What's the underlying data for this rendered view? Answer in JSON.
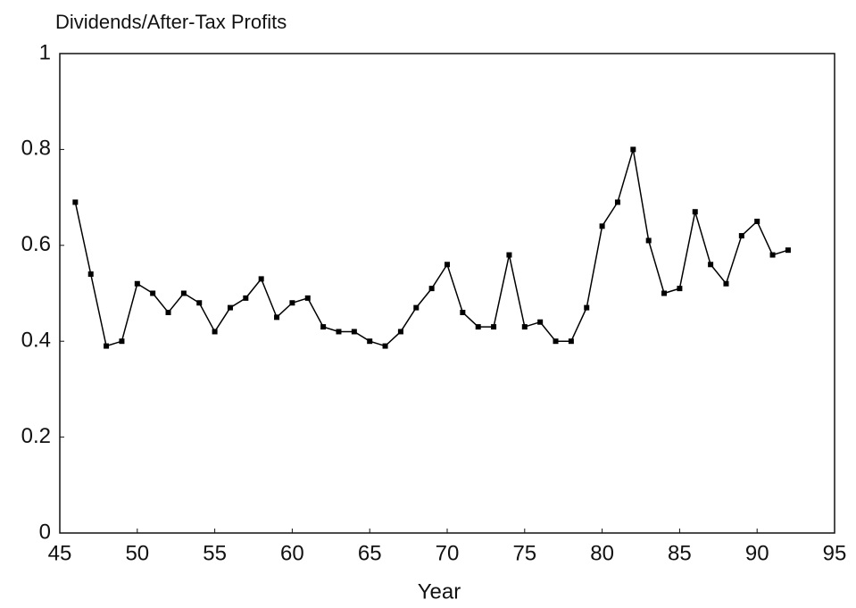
{
  "chart_data": {
    "type": "line",
    "title": "Dividends/After-Tax Profits",
    "x_label": "Year",
    "x": [
      46,
      47,
      48,
      49,
      50,
      51,
      52,
      53,
      54,
      55,
      56,
      57,
      58,
      59,
      60,
      61,
      62,
      63,
      64,
      65,
      66,
      67,
      68,
      69,
      70,
      71,
      72,
      73,
      74,
      75,
      76,
      77,
      78,
      79,
      80,
      81,
      82,
      83,
      84,
      85,
      86,
      87,
      88,
      89,
      90,
      91,
      92
    ],
    "values": [
      0.69,
      0.54,
      0.39,
      0.4,
      0.52,
      0.5,
      0.46,
      0.5,
      0.48,
      0.42,
      0.47,
      0.49,
      0.53,
      0.45,
      0.48,
      0.49,
      0.43,
      0.42,
      0.42,
      0.4,
      0.39,
      0.42,
      0.47,
      0.51,
      0.56,
      0.46,
      0.43,
      0.43,
      0.58,
      0.43,
      0.44,
      0.4,
      0.4,
      0.47,
      0.64,
      0.69,
      0.8,
      0.61,
      0.5,
      0.51,
      0.67,
      0.56,
      0.52,
      0.62,
      0.65,
      0.58,
      0.59
    ],
    "color": "#000000",
    "xlim": [
      45,
      95
    ],
    "xticks": [
      45,
      50,
      55,
      60,
      65,
      70,
      75,
      80,
      85,
      90,
      95
    ],
    "ylim": [
      0,
      1
    ],
    "yticks": [
      0,
      0.2,
      0.4,
      0.6,
      0.8,
      1
    ],
    "grid": false
  }
}
